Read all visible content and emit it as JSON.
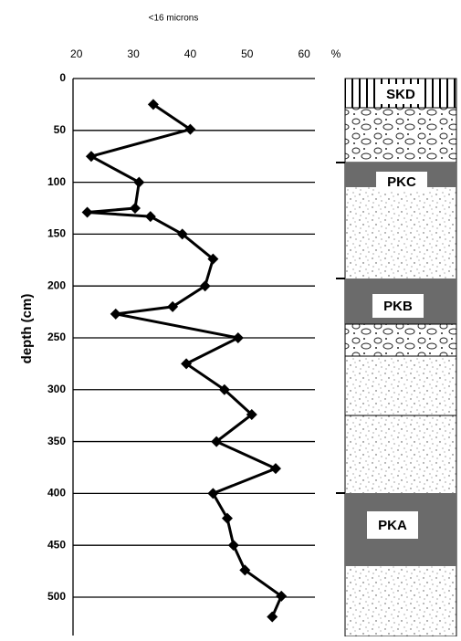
{
  "chart_data": {
    "type": "line",
    "title": "<16 microns",
    "xlabel": "%",
    "ylabel": "depth (cm)",
    "x": [
      33.5,
      40,
      22.6,
      31,
      30.3,
      21.9,
      33,
      38.6,
      44,
      42.6,
      36.9,
      26.9,
      48.4,
      39.3,
      46,
      50.8,
      44.6,
      55,
      44,
      46.5,
      47.6,
      49.6,
      56,
      54.4
    ],
    "values": [
      25,
      49,
      75,
      100,
      125,
      129,
      133,
      150,
      174,
      200,
      220,
      227,
      250,
      275,
      300,
      324,
      350,
      376,
      400,
      424,
      450,
      474,
      499,
      519
    ],
    "color": "#000000",
    "xlim": [
      19.4,
      61.9
    ],
    "xticks": [
      20,
      30,
      40,
      50,
      60
    ],
    "ylim": [
      0,
      537
    ],
    "yticks": [
      0,
      50,
      100,
      150,
      200,
      250,
      300,
      350,
      400,
      450,
      500
    ],
    "y_inverted": true,
    "grid": true
  },
  "column": {
    "labels": [
      "SKD",
      "PKC",
      "PKB",
      "PKA"
    ]
  }
}
